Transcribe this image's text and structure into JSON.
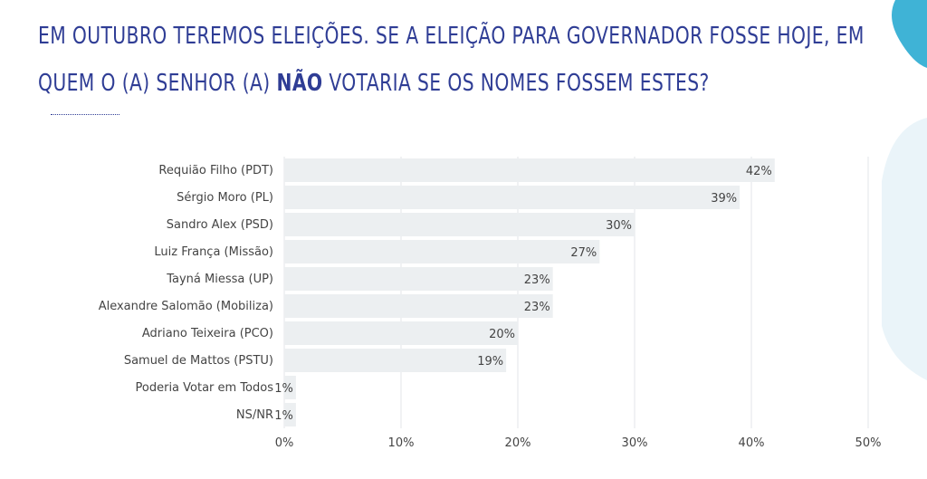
{
  "title": {
    "line1": "EM OUTUBRO TEREMOS ELEIÇÕES. SE A ELEIÇÃO PARA GOVERNADOR FOSSE HOJE, EM",
    "line2_pre": "QUEM O (A) SENHOR (A) ",
    "line2_bold": "NÃO",
    "line2_post": " VOTARIA SE OS NOMES FOSSEM ESTES?"
  },
  "colors": {
    "title": "#2f3d95",
    "bar": "#eceff1",
    "grid": "#e3e6e8",
    "text": "#444444",
    "accent": "#3fb3d6"
  },
  "chart_data": {
    "type": "bar",
    "orientation": "horizontal",
    "categories": [
      "Requião Filho (PDT)",
      "Sérgio Moro (PL)",
      "Sandro Alex (PSD)",
      "Luiz França (Missão)",
      "Tayná Miessa (UP)",
      "Alexandre Salomão (Mobiliza)",
      "Adriano Teixeira (PCO)",
      "Samuel de Mattos (PSTU)",
      "Poderia Votar em Todos",
      "NS/NR"
    ],
    "values": [
      42,
      39,
      30,
      27,
      23,
      23,
      20,
      19,
      1,
      1
    ],
    "value_labels": [
      "42%",
      "39%",
      "30%",
      "27%",
      "23%",
      "23%",
      "20%",
      "19%",
      "1%",
      "1%"
    ],
    "xticks": [
      "0%",
      "10%",
      "20%",
      "30%",
      "40%",
      "50%"
    ],
    "xlim": [
      0,
      50
    ],
    "grid": true
  }
}
